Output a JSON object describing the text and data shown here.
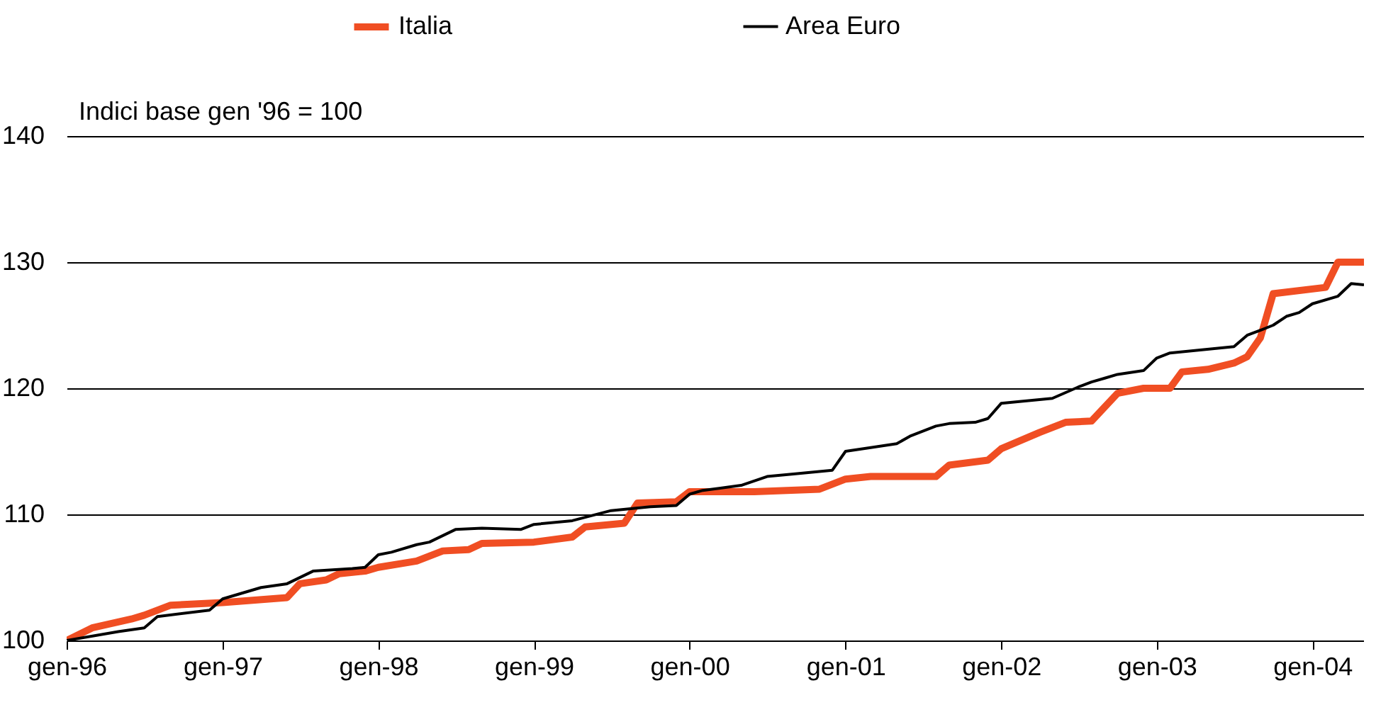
{
  "chart_data": {
    "type": "line",
    "ylabel": "Indici base gen '96 = 100",
    "xlim": [
      "1996-01",
      "2004-05"
    ],
    "ylim": [
      100,
      140
    ],
    "yticks": [
      100,
      110,
      120,
      130,
      140
    ],
    "xticks": [
      {
        "value": "1996-01",
        "label": "gen-96"
      },
      {
        "value": "1997-01",
        "label": "gen-97"
      },
      {
        "value": "1998-01",
        "label": "gen-98"
      },
      {
        "value": "1999-01",
        "label": "gen-99"
      },
      {
        "value": "2000-01",
        "label": "gen-00"
      },
      {
        "value": "2001-01",
        "label": "gen-01"
      },
      {
        "value": "2002-01",
        "label": "gen-02"
      },
      {
        "value": "2003-01",
        "label": "gen-03"
      },
      {
        "value": "2004-01",
        "label": "gen-04"
      }
    ],
    "grid": "y",
    "legend": "top",
    "line_style": "solid",
    "marker": "none",
    "series": [
      {
        "name": "Italia",
        "color": "#f04e23",
        "x": [
          "1996-01",
          "1996-03",
          "1996-06",
          "1996-07",
          "1996-09",
          "1997-01",
          "1997-06",
          "1997-07",
          "1997-09",
          "1997-10",
          "1997-12",
          "1998-01",
          "1998-04",
          "1998-06",
          "1998-08",
          "1998-09",
          "1999-01",
          "1999-04",
          "1999-05",
          "1999-08",
          "1999-09",
          "1999-12",
          "2000-01",
          "2000-06",
          "2000-11",
          "2001-01",
          "2001-03",
          "2001-08",
          "2001-09",
          "2001-12",
          "2002-01",
          "2002-04",
          "2002-06",
          "2002-08",
          "2002-10",
          "2002-12",
          "2003-02",
          "2003-03",
          "2003-05",
          "2003-07",
          "2003-08",
          "2003-09",
          "2003-10",
          "2004-02",
          "2004-03",
          "2004-05"
        ],
        "values": [
          100,
          101,
          101.7,
          102,
          102.8,
          103,
          103.4,
          104.5,
          104.8,
          105.3,
          105.5,
          105.8,
          106.3,
          107.1,
          107.2,
          107.7,
          107.8,
          108.2,
          109,
          109.3,
          110.9,
          111,
          111.8,
          111.8,
          112,
          112.8,
          113,
          113,
          113.9,
          114.3,
          115.2,
          116.5,
          117.3,
          117.4,
          119.6,
          120,
          120,
          121.3,
          121.5,
          122,
          122.5,
          124,
          127.5,
          128,
          130,
          130
        ]
      },
      {
        "name": "Area Euro",
        "color": "#000000",
        "x": [
          "1996-01",
          "1996-05",
          "1996-07",
          "1996-08",
          "1996-12",
          "1997-01",
          "1997-04",
          "1997-06",
          "1997-08",
          "1997-11",
          "1997-12",
          "1998-01",
          "1998-02",
          "1998-04",
          "1998-05",
          "1998-07",
          "1998-09",
          "1998-12",
          "1999-01",
          "1999-04",
          "1999-07",
          "1999-10",
          "1999-12",
          "2000-01",
          "2000-02",
          "2000-05",
          "2000-07",
          "2000-09",
          "2000-12",
          "2001-01",
          "2001-03",
          "2001-05",
          "2001-06",
          "2001-08",
          "2001-09",
          "2001-11",
          "2001-12",
          "2002-01",
          "2002-05",
          "2002-07",
          "2002-08",
          "2002-09",
          "2002-10",
          "2002-12",
          "2003-01",
          "2003-02",
          "2003-07",
          "2003-08",
          "2003-09",
          "2003-10",
          "2003-11",
          "2003-12",
          "2004-01",
          "2004-03",
          "2004-04",
          "2004-05"
        ],
        "values": [
          100,
          100.7,
          101,
          101.9,
          102.4,
          103.3,
          104.2,
          104.5,
          105.5,
          105.7,
          105.8,
          106.8,
          107,
          107.6,
          107.8,
          108.8,
          108.9,
          108.8,
          109.2,
          109.5,
          110.3,
          110.6,
          110.7,
          111.6,
          111.9,
          112.3,
          113,
          113.2,
          113.5,
          115,
          115.3,
          115.6,
          116.2,
          117,
          117.2,
          117.3,
          117.6,
          118.8,
          119.2,
          120.1,
          120.5,
          120.8,
          121.1,
          121.4,
          122.4,
          122.8,
          123.3,
          124.2,
          124.6,
          125,
          125.7,
          126,
          126.7,
          127.3,
          128.3,
          128.2
        ]
      }
    ]
  }
}
